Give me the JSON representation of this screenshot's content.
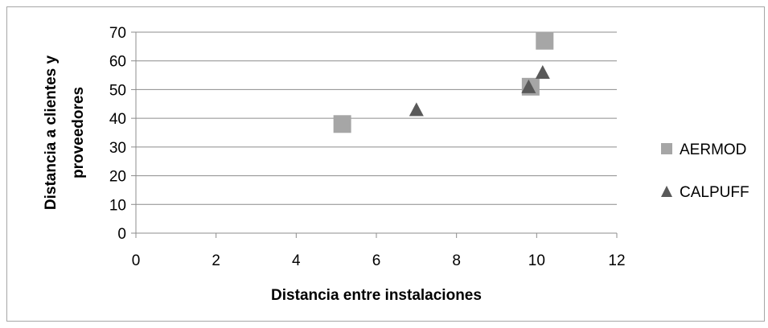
{
  "chart_data": {
    "type": "scatter",
    "title": "",
    "xlabel": "Distancia entre instalaciones",
    "ylabel_lines": [
      "Distancia a clientes y",
      "proveedores"
    ],
    "xlim": [
      0,
      12
    ],
    "ylim": [
      0,
      70
    ],
    "x_ticks": [
      "0",
      "2",
      "4",
      "6",
      "8",
      "10",
      "12"
    ],
    "y_ticks": [
      "0",
      "10",
      "20",
      "30",
      "40",
      "50",
      "60",
      "70"
    ],
    "grid": "horizontal",
    "legend_position": "right",
    "series": [
      {
        "name": "AERMOD",
        "marker": "square",
        "color": "#a6a6a6",
        "points": [
          {
            "x": 5.15,
            "y": 38
          },
          {
            "x": 9.85,
            "y": 51
          },
          {
            "x": 10.2,
            "y": 67
          }
        ]
      },
      {
        "name": "CALPUFF",
        "marker": "triangle",
        "color": "#595959",
        "points": [
          {
            "x": 7.0,
            "y": 43
          },
          {
            "x": 9.8,
            "y": 51
          },
          {
            "x": 10.15,
            "y": 56
          }
        ]
      }
    ]
  }
}
